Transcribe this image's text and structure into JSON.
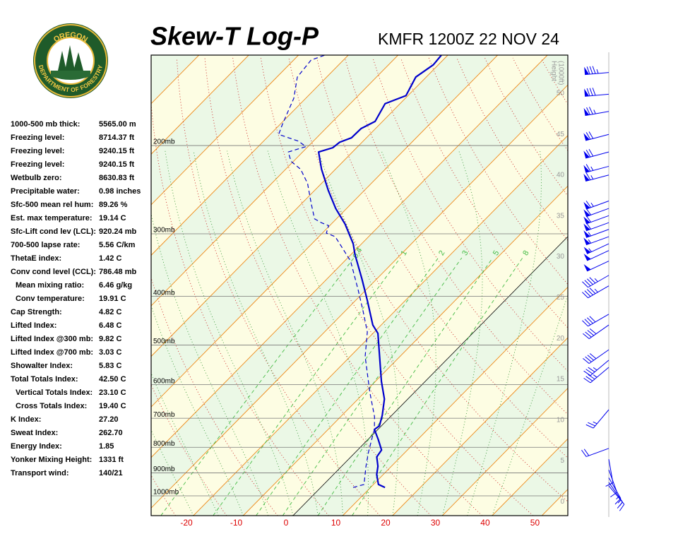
{
  "header": {
    "title": "Skew-T Log-P",
    "station": "KMFR 1200Z 22 NOV 24"
  },
  "logo": {
    "top": "OREGON",
    "bottom": "DEPARTMENT OF FORESTRY"
  },
  "indices": [
    {
      "label": "1000-500 mb thick:",
      "value": "5565.00 m",
      "indent": false
    },
    {
      "label": "Freezing level:",
      "value": "8714.37 ft",
      "indent": false
    },
    {
      "label": "Freezing level:",
      "value": "9240.15 ft",
      "indent": false
    },
    {
      "label": "Freezing level:",
      "value": "9240.15 ft",
      "indent": false
    },
    {
      "label": "Wetbulb zero:",
      "value": "8630.83 ft",
      "indent": false
    },
    {
      "label": "Precipitable water:",
      "value": "0.98 inches",
      "indent": false
    },
    {
      "label": "Sfc-500 mean rel hum:",
      "value": "89.26 %",
      "indent": false
    },
    {
      "label": "Est. max temperature:",
      "value": "19.14 C",
      "indent": false
    },
    {
      "label": "Sfc-Lift cond lev (LCL):",
      "value": "920.24 mb",
      "indent": false
    },
    {
      "label": "700-500 lapse rate:",
      "value": "5.56 C/km",
      "indent": false
    },
    {
      "label": "ThetaE index:",
      "value": "1.42 C",
      "indent": false
    },
    {
      "label": "Conv cond level (CCL):",
      "value": "786.48 mb",
      "indent": false
    },
    {
      "label": "Mean mixing ratio:",
      "value": "6.46 g/kg",
      "indent": true
    },
    {
      "label": "Conv temperature:",
      "value": "19.91 C",
      "indent": true
    },
    {
      "label": "Cap Strength:",
      "value": "4.82 C",
      "indent": false
    },
    {
      "label": "Lifted Index:",
      "value": "6.48 C",
      "indent": false
    },
    {
      "label": "Lifted Index @300 mb:",
      "value": "9.82 C",
      "indent": false
    },
    {
      "label": "Lifted Index @700 mb:",
      "value": "3.03 C",
      "indent": false
    },
    {
      "label": "Showalter Index:",
      "value": "5.83 C",
      "indent": false
    },
    {
      "label": "Total Totals Index:",
      "value": "42.50 C",
      "indent": false
    },
    {
      "label": "Vertical Totals Index:",
      "value": "23.10 C",
      "indent": true
    },
    {
      "label": "Cross Totals Index:",
      "value": "19.40 C",
      "indent": true
    },
    {
      "label": "K Index:",
      "value": "27.20",
      "indent": false
    },
    {
      "label": "Sweat Index:",
      "value": "262.70",
      "indent": false
    },
    {
      "label": "Energy Index:",
      "value": "1.85",
      "indent": false
    },
    {
      "label": "Yonker Mixing Height:",
      "value": "1331 ft",
      "indent": false
    },
    {
      "label": "Transport wind:",
      "value": "140/21",
      "indent": false
    }
  ],
  "chart_data": {
    "type": "skewt",
    "xlim": [
      -27.1,
      56.6
    ],
    "ylim": [
      1095,
      132
    ],
    "xticks": [
      -20,
      -10,
      0,
      10,
      20,
      30,
      40,
      50
    ],
    "yticks": [
      {
        "value": 200,
        "label": "200mb"
      },
      {
        "value": 300,
        "label": "300mb"
      },
      {
        "value": 400,
        "label": "400mb"
      },
      {
        "value": 500,
        "label": "500mb"
      },
      {
        "value": 600,
        "label": "600mb"
      },
      {
        "value": 700,
        "label": "700mb"
      },
      {
        "value": 800,
        "label": "800mb"
      },
      {
        "value": 900,
        "label": "900mb"
      },
      {
        "value": 1000,
        "label": "1000mb"
      }
    ],
    "hlim": [
      -1.7,
      54.7
    ],
    "height_ticks": [
      0,
      5,
      10,
      15,
      20,
      25,
      30,
      35,
      40,
      45,
      50
    ],
    "height_label": [
      "Height",
      "(1000ft)"
    ],
    "mixing_ratios": [
      0.4,
      1,
      2,
      3,
      5,
      8
    ],
    "temperature": {
      "color": "#0000cc",
      "pressure": [
        962,
        949,
        907,
        873,
        836,
        810,
        771,
        737,
        725,
        691,
        641,
        591,
        527,
        474,
        456,
        407,
        369,
        330,
        314,
        287,
        267,
        246,
        223,
        206,
        202,
        197,
        193,
        185,
        179,
        165,
        159,
        146,
        138,
        132
      ],
      "values": [
        12.9,
        11.0,
        8.7,
        7.3,
        5.2,
        4.8,
        2.0,
        -0.7,
        -0.4,
        -1.9,
        -4.7,
        -8.8,
        -14.1,
        -19.0,
        -21.7,
        -27.7,
        -33.0,
        -39.2,
        -41.7,
        -47.2,
        -52.2,
        -57.2,
        -62.8,
        -66.8,
        -64.8,
        -64.5,
        -63.0,
        -62.9,
        -61.5,
        -63.0,
        -60.4,
        -62.1,
        -61.0,
        -61.3
      ]
    },
    "dewpoint": {
      "color": "#0000cc",
      "pressure": [
        962,
        949,
        873,
        818,
        766,
        737,
        695,
        621,
        527,
        471,
        427,
        388,
        340,
        304,
        299,
        289,
        285,
        280,
        262,
        238,
        223,
        215,
        206,
        201,
        196,
        190,
        181,
        161,
        146,
        135,
        132
      ],
      "values": [
        6.5,
        8.1,
        4.9,
        2.6,
        0.5,
        -0.7,
        -3.2,
        -9.0,
        -17.0,
        -21.4,
        -26.5,
        -31.6,
        -38.8,
        -46.7,
        -49.2,
        -50.2,
        -52.3,
        -54.4,
        -57.9,
        -62.8,
        -67.0,
        -70.5,
        -72.9,
        -70.4,
        -73.0,
        -78.3,
        -79.6,
        -82.4,
        -85.9,
        -86.5,
        -84.7
      ]
    },
    "winds": {
      "color": "#0000ee",
      "pressure": [
        143,
        158,
        171,
        190,
        206,
        220,
        229,
        258,
        267,
        276,
        285,
        294,
        304,
        314,
        324,
        340,
        363,
        381,
        434,
        456,
        511,
        536,
        554,
        673,
        804,
        845,
        887,
        920,
        940,
        955
      ],
      "direction": [
        265,
        265,
        260,
        255,
        255,
        255,
        255,
        250,
        250,
        250,
        250,
        250,
        250,
        245,
        245,
        245,
        240,
        240,
        240,
        235,
        235,
        230,
        230,
        220,
        250,
        170,
        160,
        150,
        145,
        140
      ],
      "speed": [
        85,
        80,
        75,
        70,
        70,
        65,
        65,
        65,
        60,
        60,
        60,
        55,
        55,
        55,
        50,
        50,
        45,
        45,
        40,
        40,
        40,
        35,
        35,
        25,
        20,
        10,
        10,
        15,
        15,
        15
      ]
    }
  }
}
